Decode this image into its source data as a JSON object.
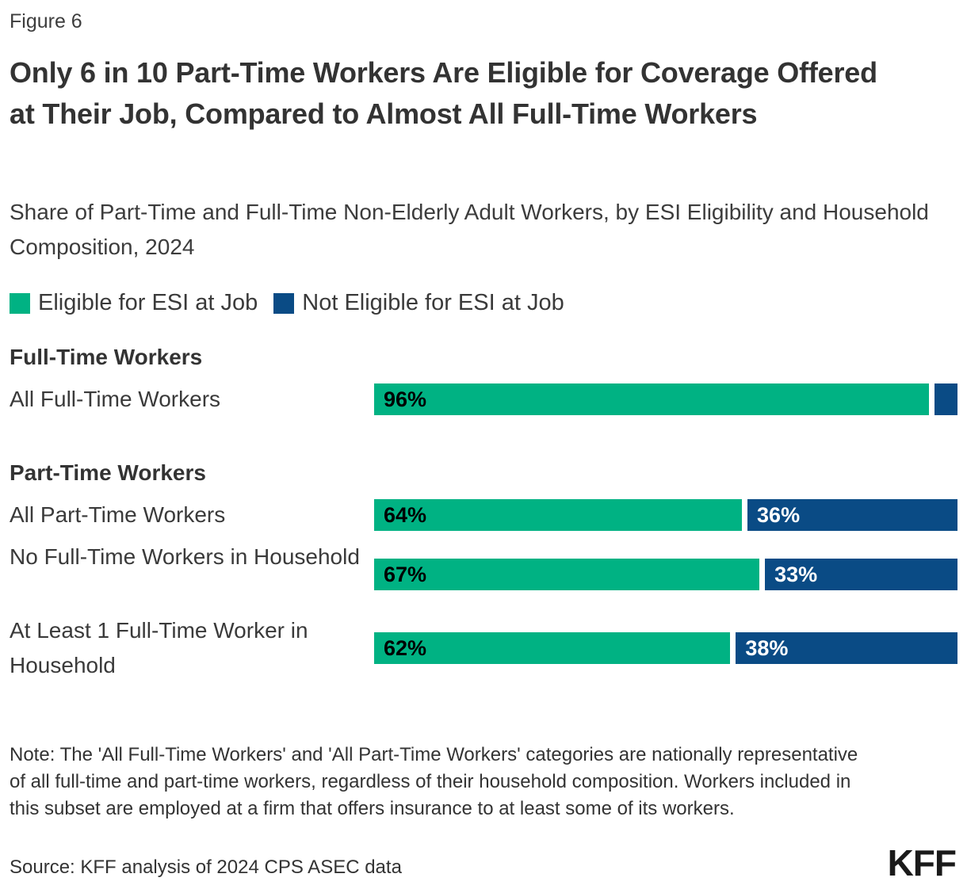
{
  "figure_label": "Figure 6",
  "title": "Only 6 in 10 Part-Time Workers Are Eligible for Coverage Offered at Their Job, Compared to Almost All Full-Time Workers",
  "subtitle": "Share of Part-Time and Full-Time Non-Elderly Adult Workers, by ESI Eligibility and Household Composition, 2024",
  "note": "Note: The 'All Full-Time Workers' and 'All Part-Time Workers' categories are nationally representative of all full-time and part-time workers, regardless of their household composition. Workers included in this subset are employed at a firm that offers insurance to at least some of its workers.",
  "source": "Source: KFF analysis of 2024 CPS ASEC data",
  "logo": "KFF",
  "colors": {
    "eligible_green": "#00b283",
    "not_eligible_blue": "#0a4b85",
    "text": "#333333"
  },
  "chart_data": {
    "type": "bar",
    "orientation": "horizontal",
    "stacked": true,
    "unit": "percent",
    "x_max": 100,
    "grid": false,
    "legend_position": "top",
    "legend": [
      {
        "label": "Eligible for ESI at Job",
        "color": "#00b283"
      },
      {
        "label": "Not Eligible for ESI at Job",
        "color": "#0a4b85"
      }
    ],
    "groups": [
      {
        "header": "Full-Time Workers",
        "rows": [
          {
            "label": "All Full-Time Workers",
            "eligible_pct": 96,
            "not_eligible_pct": 4,
            "eligible_label": "96%",
            "not_eligible_label": ""
          }
        ]
      },
      {
        "header": "Part-Time Workers",
        "rows": [
          {
            "label": "All Part-Time Workers",
            "eligible_pct": 64,
            "not_eligible_pct": 36,
            "eligible_label": "64%",
            "not_eligible_label": "36%"
          },
          {
            "label": "No Full-Time Workers in Household",
            "eligible_pct": 67,
            "not_eligible_pct": 33,
            "eligible_label": "67%",
            "not_eligible_label": "33%"
          },
          {
            "label": "At Least 1 Full-Time Worker in Household",
            "eligible_pct": 62,
            "not_eligible_pct": 38,
            "eligible_label": "62%",
            "not_eligible_label": "38%"
          }
        ]
      }
    ]
  }
}
